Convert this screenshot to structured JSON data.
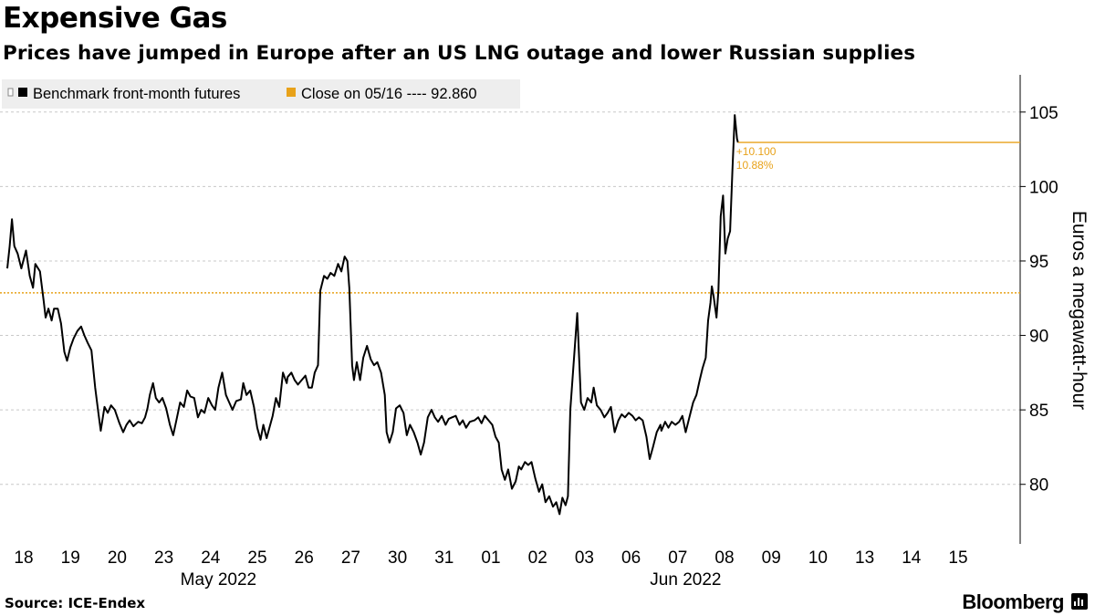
{
  "header": {
    "title": "Expensive Gas",
    "subtitle": "Prices have jumped in Europe after an US LNG outage and lower Russian supplies"
  },
  "footer": {
    "source": "Source: ICE-Endex",
    "brand": "Bloomberg"
  },
  "colors": {
    "series": "#000000",
    "reference": "#e8a21a",
    "grid": "#c8c8c8",
    "legend_bg": "#eeeeee"
  },
  "chart_data": {
    "type": "line",
    "title": "Expensive Gas",
    "subtitle": "Prices have jumped in Europe after an US LNG outage and lower Russian supplies",
    "ylabel": "Euros a megawatt-hour",
    "xlabel": "",
    "ylim": [
      76,
      107.5
    ],
    "yticks": [
      80,
      85,
      90,
      95,
      100,
      105
    ],
    "grid": true,
    "legend_placement": "top-left",
    "legend": {
      "series_label": "Benchmark front-month futures",
      "reference_label": "Close on 05/16 ---- 92.860"
    },
    "reference_line": {
      "value": 92.86,
      "style": "dotted"
    },
    "last_value": 102.96,
    "change_annotation": {
      "abs": "+10.100",
      "pct": "10.88%"
    },
    "x_tick_labels": [
      "18",
      "19",
      "20",
      "23",
      "24",
      "25",
      "26",
      "27",
      "30",
      "31",
      "01",
      "02",
      "03",
      "06",
      "07",
      "08",
      "09",
      "10",
      "13",
      "14",
      "15"
    ],
    "month_labels": [
      {
        "label": "May 2022",
        "at_day": 4.5
      },
      {
        "label": "Jun 2022",
        "at_day": 14.5
      }
    ],
    "x_unit": "trading days from May 18 session open",
    "series": [
      {
        "name": "Benchmark front-month futures",
        "points": [
          [
            0.0,
            94.5
          ],
          [
            0.05,
            96.0
          ],
          [
            0.1,
            97.8
          ],
          [
            0.15,
            96.0
          ],
          [
            0.22,
            95.5
          ],
          [
            0.3,
            94.5
          ],
          [
            0.4,
            95.7
          ],
          [
            0.48,
            94.0
          ],
          [
            0.55,
            93.2
          ],
          [
            0.6,
            94.8
          ],
          [
            0.7,
            94.3
          ],
          [
            0.78,
            92.3
          ],
          [
            0.82,
            91.2
          ],
          [
            0.88,
            91.8
          ],
          [
            0.95,
            91.0
          ],
          [
            1.0,
            91.8
          ],
          [
            1.08,
            91.8
          ],
          [
            1.15,
            90.8
          ],
          [
            1.22,
            88.9
          ],
          [
            1.28,
            88.3
          ],
          [
            1.35,
            89.2
          ],
          [
            1.42,
            89.8
          ],
          [
            1.5,
            90.3
          ],
          [
            1.58,
            90.6
          ],
          [
            1.65,
            90.0
          ],
          [
            1.72,
            89.5
          ],
          [
            1.8,
            89.0
          ],
          [
            1.88,
            86.5
          ],
          [
            1.95,
            84.8
          ],
          [
            2.0,
            83.6
          ],
          [
            2.08,
            85.2
          ],
          [
            2.15,
            84.8
          ],
          [
            2.22,
            85.3
          ],
          [
            2.3,
            85.0
          ],
          [
            2.4,
            84.1
          ],
          [
            2.48,
            83.5
          ],
          [
            2.55,
            84.0
          ],
          [
            2.62,
            84.3
          ],
          [
            2.7,
            83.9
          ],
          [
            2.8,
            84.2
          ],
          [
            2.88,
            84.1
          ],
          [
            2.95,
            84.5
          ],
          [
            3.0,
            85.1
          ],
          [
            3.05,
            86.0
          ],
          [
            3.12,
            86.8
          ],
          [
            3.18,
            85.8
          ],
          [
            3.25,
            85.5
          ],
          [
            3.32,
            85.8
          ],
          [
            3.4,
            85.1
          ],
          [
            3.48,
            84.0
          ],
          [
            3.55,
            83.3
          ],
          [
            3.62,
            84.3
          ],
          [
            3.7,
            85.5
          ],
          [
            3.78,
            85.2
          ],
          [
            3.85,
            86.3
          ],
          [
            3.92,
            85.9
          ],
          [
            4.0,
            85.8
          ],
          [
            4.08,
            84.5
          ],
          [
            4.15,
            85.0
          ],
          [
            4.22,
            84.8
          ],
          [
            4.3,
            85.8
          ],
          [
            4.38,
            85.3
          ],
          [
            4.45,
            85.0
          ],
          [
            4.52,
            86.5
          ],
          [
            4.6,
            87.5
          ],
          [
            4.68,
            86.0
          ],
          [
            4.75,
            85.5
          ],
          [
            4.82,
            85.0
          ],
          [
            4.9,
            85.6
          ],
          [
            5.0,
            85.7
          ],
          [
            5.05,
            86.8
          ],
          [
            5.12,
            86.0
          ],
          [
            5.2,
            86.3
          ],
          [
            5.28,
            85.2
          ],
          [
            5.35,
            83.8
          ],
          [
            5.42,
            83.0
          ],
          [
            5.48,
            84.0
          ],
          [
            5.55,
            83.1
          ],
          [
            5.62,
            83.9
          ],
          [
            5.68,
            84.6
          ],
          [
            5.75,
            85.8
          ],
          [
            5.82,
            85.2
          ],
          [
            5.9,
            87.5
          ],
          [
            5.98,
            86.8
          ],
          [
            6.0,
            87.2
          ],
          [
            6.08,
            87.5
          ],
          [
            6.15,
            87.0
          ],
          [
            6.22,
            86.7
          ],
          [
            6.3,
            87.0
          ],
          [
            6.38,
            87.3
          ],
          [
            6.45,
            86.5
          ],
          [
            6.52,
            86.5
          ],
          [
            6.58,
            87.5
          ],
          [
            6.65,
            88.0
          ],
          [
            6.7,
            93.0
          ],
          [
            6.78,
            94.0
          ],
          [
            6.85,
            93.8
          ],
          [
            6.92,
            94.2
          ],
          [
            7.0,
            94.0
          ],
          [
            7.08,
            94.8
          ],
          [
            7.15,
            94.3
          ],
          [
            7.22,
            95.3
          ],
          [
            7.28,
            95.0
          ],
          [
            7.32,
            93.2
          ],
          [
            7.38,
            88.0
          ],
          [
            7.42,
            87.0
          ],
          [
            7.48,
            88.2
          ],
          [
            7.55,
            87.0
          ],
          [
            7.62,
            88.5
          ],
          [
            7.7,
            89.3
          ],
          [
            7.78,
            88.4
          ],
          [
            7.85,
            88.0
          ],
          [
            7.92,
            88.2
          ],
          [
            8.0,
            87.5
          ],
          [
            8.08,
            86.0
          ],
          [
            8.12,
            83.5
          ],
          [
            8.18,
            82.8
          ],
          [
            8.25,
            83.5
          ],
          [
            8.32,
            85.1
          ],
          [
            8.4,
            85.3
          ],
          [
            8.48,
            84.8
          ],
          [
            8.55,
            83.3
          ],
          [
            8.62,
            84.0
          ],
          [
            8.7,
            83.5
          ],
          [
            8.78,
            82.8
          ],
          [
            8.85,
            82.0
          ],
          [
            8.92,
            82.8
          ],
          [
            9.0,
            84.5
          ],
          [
            9.08,
            85.0
          ],
          [
            9.15,
            84.5
          ],
          [
            9.22,
            84.2
          ],
          [
            9.3,
            84.6
          ],
          [
            9.38,
            84.0
          ],
          [
            9.45,
            84.4
          ],
          [
            9.52,
            84.5
          ],
          [
            9.6,
            84.6
          ],
          [
            9.68,
            84.0
          ],
          [
            9.75,
            84.3
          ],
          [
            9.82,
            83.8
          ],
          [
            9.9,
            84.2
          ],
          [
            10.0,
            84.3
          ],
          [
            10.08,
            84.5
          ],
          [
            10.15,
            84.1
          ],
          [
            10.22,
            84.6
          ],
          [
            10.3,
            84.3
          ],
          [
            10.38,
            84.0
          ],
          [
            10.45,
            83.2
          ],
          [
            10.52,
            82.8
          ],
          [
            10.58,
            81.0
          ],
          [
            10.65,
            80.3
          ],
          [
            10.72,
            81.0
          ],
          [
            10.8,
            79.7
          ],
          [
            10.88,
            80.2
          ],
          [
            10.95,
            81.2
          ],
          [
            11.0,
            81.0
          ],
          [
            11.08,
            81.5
          ],
          [
            11.15,
            81.3
          ],
          [
            11.22,
            81.5
          ],
          [
            11.3,
            80.4
          ],
          [
            11.38,
            79.5
          ],
          [
            11.45,
            80.0
          ],
          [
            11.52,
            78.8
          ],
          [
            11.6,
            79.2
          ],
          [
            11.68,
            78.5
          ],
          [
            11.75,
            78.8
          ],
          [
            11.82,
            78.0
          ],
          [
            11.88,
            79.1
          ],
          [
            11.95,
            78.6
          ],
          [
            12.0,
            79.2
          ],
          [
            12.05,
            85.0
          ],
          [
            12.12,
            88.0
          ],
          [
            12.2,
            91.5
          ],
          [
            12.28,
            85.5
          ],
          [
            12.35,
            85.0
          ],
          [
            12.42,
            85.8
          ],
          [
            12.5,
            85.5
          ],
          [
            12.55,
            86.5
          ],
          [
            12.62,
            85.3
          ],
          [
            12.7,
            85.0
          ],
          [
            12.78,
            84.5
          ],
          [
            12.85,
            84.8
          ],
          [
            12.92,
            85.2
          ],
          [
            13.0,
            83.5
          ],
          [
            13.08,
            84.3
          ],
          [
            13.15,
            84.7
          ],
          [
            13.22,
            84.5
          ],
          [
            13.3,
            84.8
          ],
          [
            13.38,
            84.6
          ],
          [
            13.45,
            84.3
          ],
          [
            13.52,
            84.5
          ],
          [
            13.6,
            84.3
          ],
          [
            13.68,
            83.2
          ],
          [
            13.75,
            81.7
          ],
          [
            13.82,
            82.5
          ],
          [
            13.9,
            83.5
          ],
          [
            13.98,
            84.0
          ],
          [
            14.0,
            83.6
          ],
          [
            14.08,
            84.2
          ],
          [
            14.15,
            83.8
          ],
          [
            14.22,
            84.2
          ],
          [
            14.3,
            84.0
          ],
          [
            14.38,
            84.2
          ],
          [
            14.45,
            84.6
          ],
          [
            14.52,
            83.5
          ],
          [
            14.6,
            84.5
          ],
          [
            14.68,
            85.5
          ],
          [
            14.75,
            86.0
          ],
          [
            14.82,
            87.0
          ],
          [
            14.88,
            87.8
          ],
          [
            14.95,
            88.5
          ],
          [
            15.0,
            91.0
          ],
          [
            15.05,
            92.2
          ],
          [
            15.08,
            93.3
          ],
          [
            15.12,
            92.6
          ],
          [
            15.18,
            91.2
          ],
          [
            15.22,
            93.0
          ],
          [
            15.27,
            98.0
          ],
          [
            15.32,
            99.4
          ],
          [
            15.37,
            95.5
          ],
          [
            15.42,
            96.5
          ],
          [
            15.47,
            97.0
          ],
          [
            15.52,
            101.0
          ],
          [
            15.57,
            104.8
          ],
          [
            15.62,
            103.2
          ],
          [
            15.64,
            102.96
          ]
        ]
      }
    ]
  }
}
